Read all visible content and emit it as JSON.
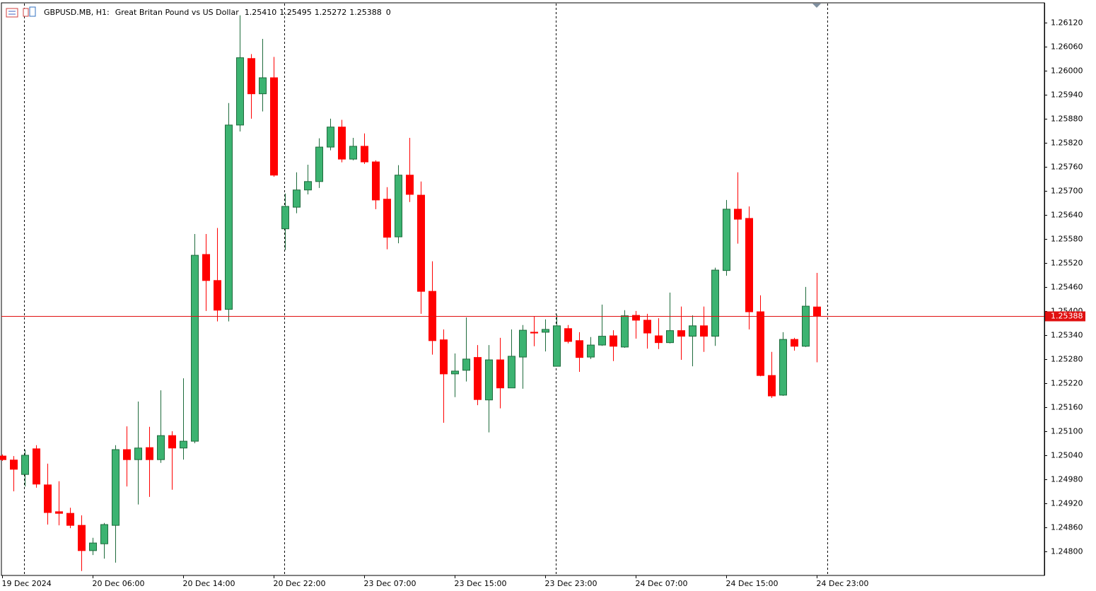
{
  "chart_data": {
    "type": "candlestick",
    "symbol": "GBPUSD.MB, H1:",
    "description": "Great Britan Pound vs US Dollar",
    "info": [
      "1.25410",
      "1.25495",
      "1.25272",
      "1.25388",
      "0"
    ],
    "up_color": "#3cb371",
    "down_color": "#ff0000",
    "categories": [
      "19 Dec 2024",
      null,
      null,
      null,
      null,
      null,
      null,
      null,
      "20 Dec 06:00",
      null,
      null,
      null,
      null,
      null,
      null,
      null,
      "20 Dec 14:00",
      null,
      null,
      null,
      null,
      null,
      null,
      null,
      "20 Dec 22:00",
      null,
      null,
      null,
      null,
      null,
      null,
      null,
      "23 Dec 07:00",
      null,
      null,
      null,
      null,
      null,
      null,
      null,
      "23 Dec 15:00",
      null,
      null,
      null,
      null,
      null,
      null,
      null,
      "23 Dec 23:00",
      null,
      null,
      null,
      null,
      null,
      null,
      null,
      "24 Dec 07:00",
      null,
      null,
      null,
      null,
      null,
      null,
      null,
      "24 Dec 15:00",
      null,
      null,
      null,
      null,
      null,
      null,
      null,
      "24 Dec 23:00"
    ],
    "open": [
      1.25038,
      1.25028,
      1.24992,
      1.25056,
      1.24966,
      1.24899,
      1.24895,
      1.24865,
      1.24802,
      1.24819,
      1.24865,
      1.25054,
      1.25029,
      1.25059,
      1.25029,
      1.25089,
      1.25058,
      1.25075,
      1.25541,
      1.25476,
      1.25404,
      1.25864,
      1.2603,
      1.25942,
      1.25982,
      1.25605,
      1.25659,
      1.25702,
      1.25723,
      1.25809,
      1.25859,
      1.25779,
      1.25811,
      1.25772,
      1.25679,
      1.25585,
      1.25739,
      1.25689,
      1.25449,
      1.25328,
      1.25243,
      1.25252,
      1.25284,
      1.25178,
      1.25278,
      1.25208,
      1.25285,
      1.25347,
      1.25347,
      1.25262,
      1.25356,
      1.25326,
      1.25285,
      1.25315,
      1.25338,
      1.2531,
      1.25389,
      1.25377,
      1.25338,
      1.25321,
      1.25351,
      1.25337,
      1.25363,
      1.25337,
      1.25501,
      1.25654,
      1.25631,
      1.25398,
      1.25239,
      1.2519,
      1.25329,
      1.25312,
      1.2541
    ],
    "high": [
      1.25042,
      1.25038,
      1.25054,
      1.25065,
      1.25019,
      1.24975,
      1.24909,
      1.2489,
      1.24834,
      1.24871,
      1.25065,
      1.25112,
      1.25174,
      1.25111,
      1.25202,
      1.251,
      1.25232,
      1.25592,
      1.25592,
      1.25607,
      1.25919,
      1.26138,
      1.26041,
      1.26079,
      1.26034,
      1.25693,
      1.25746,
      1.25765,
      1.25831,
      1.2588,
      1.25877,
      1.25832,
      1.25843,
      1.25776,
      1.25709,
      1.25764,
      1.25832,
      1.25723,
      1.25524,
      1.25354,
      1.25294,
      1.25384,
      1.25315,
      1.25315,
      1.25333,
      1.25354,
      1.25365,
      1.25386,
      1.25379,
      1.25391,
      1.25365,
      1.25347,
      1.25335,
      1.25416,
      1.25352,
      1.25402,
      1.254,
      1.25393,
      1.25382,
      1.25446,
      1.25411,
      1.25389,
      1.25411,
      1.25508,
      1.25677,
      1.25746,
      1.25661,
      1.25439,
      1.25298,
      1.25347,
      1.25333,
      1.2546,
      1.25495
    ],
    "low": [
      1.25026,
      1.2495,
      1.24962,
      1.24959,
      1.24867,
      1.24865,
      1.24858,
      1.24751,
      1.24791,
      1.24782,
      1.24772,
      1.24962,
      1.24917,
      1.24936,
      1.25021,
      1.24954,
      1.25029,
      1.2507,
      1.254,
      1.25374,
      1.25374,
      1.25848,
      1.2588,
      1.25898,
      1.25735,
      1.25552,
      1.25644,
      1.25691,
      1.25707,
      1.25801,
      1.25771,
      1.25776,
      1.25767,
      1.25654,
      1.25554,
      1.25569,
      1.25672,
      1.25393,
      1.25291,
      1.25121,
      1.25185,
      1.25224,
      1.25165,
      1.25097,
      1.25157,
      1.25208,
      1.25206,
      1.25312,
      1.25299,
      1.25262,
      1.25319,
      1.25248,
      1.2528,
      1.25313,
      1.25275,
      1.25308,
      1.25331,
      1.25306,
      1.25305,
      1.25319,
      1.25278,
      1.25262,
      1.25298,
      1.25313,
      1.25488,
      1.25568,
      1.25354,
      1.25237,
      1.25183,
      1.25188,
      1.25301,
      1.2531,
      1.25272
    ],
    "close": [
      1.25029,
      1.25005,
      1.2504,
      1.24968,
      1.24897,
      1.24895,
      1.24865,
      1.24802,
      1.24821,
      1.24867,
      1.25054,
      1.25029,
      1.25058,
      1.25029,
      1.25089,
      1.25058,
      1.25075,
      1.25539,
      1.25476,
      1.25402,
      1.25864,
      1.26032,
      1.25942,
      1.25982,
      1.25739,
      1.25661,
      1.25702,
      1.25723,
      1.25809,
      1.25859,
      1.25779,
      1.25811,
      1.25772,
      1.25677,
      1.25584,
      1.25739,
      1.25691,
      1.25449,
      1.25326,
      1.25243,
      1.2525,
      1.2528,
      1.25179,
      1.25278,
      1.25208,
      1.25287,
      1.25352,
      1.25345,
      1.25354,
      1.25363,
      1.25324,
      1.25284,
      1.25315,
      1.25337,
      1.25312,
      1.25388,
      1.25377,
      1.25345,
      1.25321,
      1.25351,
      1.25337,
      1.25363,
      1.25337,
      1.25502,
      1.25654,
      1.25629,
      1.25398,
      1.25239,
      1.25188,
      1.25329,
      1.25312,
      1.25412,
      1.25388
    ],
    "bid_line": 1.25388,
    "bid_color": "#e01010",
    "ylim": [
      1.2474,
      1.26169
    ],
    "yticks": [
      {
        "value": 1.2612,
        "label": "1.26120"
      },
      {
        "value": 1.2606,
        "label": "1.26060"
      },
      {
        "value": 1.26,
        "label": "1.26000"
      },
      {
        "value": 1.2594,
        "label": "1.25940"
      },
      {
        "value": 1.2588,
        "label": "1.25880"
      },
      {
        "value": 1.2582,
        "label": "1.25820"
      },
      {
        "value": 1.2576,
        "label": "1.25760"
      },
      {
        "value": 1.257,
        "label": "1.25700"
      },
      {
        "value": 1.2564,
        "label": "1.25640"
      },
      {
        "value": 1.2558,
        "label": "1.25580"
      },
      {
        "value": 1.2552,
        "label": "1.25520"
      },
      {
        "value": 1.2546,
        "label": "1.25460"
      },
      {
        "value": 1.254,
        "label": "1.25400"
      },
      {
        "value": 1.2534,
        "label": "1.25340"
      },
      {
        "value": 1.2528,
        "label": "1.25280"
      },
      {
        "value": 1.2522,
        "label": "1.25220"
      },
      {
        "value": 1.2516,
        "label": "1.25160"
      },
      {
        "value": 1.251,
        "label": "1.25100"
      },
      {
        "value": 1.2504,
        "label": "1.25040"
      },
      {
        "value": 1.2498,
        "label": "1.24980"
      },
      {
        "value": 1.2492,
        "label": "1.24920"
      },
      {
        "value": 1.2486,
        "label": "1.24860"
      },
      {
        "value": 1.248,
        "label": "1.24800"
      }
    ]
  }
}
